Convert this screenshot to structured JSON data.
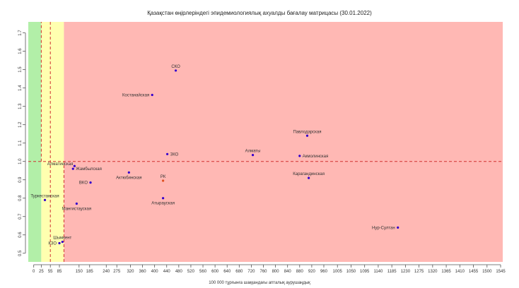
{
  "chart_data": {
    "type": "scatter",
    "title": "Қазақстан өңірлеріндегі эпидемиологиялық ахуалды бағалау матрицасы  (30.01.2022)",
    "xlabel": "100 000 тұрғынға шаққандағы апталық аурушаңдық",
    "ylabel": "",
    "xlim": [
      -18,
      1552
    ],
    "ylim": [
      0.453,
      1.76
    ],
    "x_ticks": [
      0,
      25,
      55,
      85,
      150,
      185,
      240,
      275,
      320,
      360,
      400,
      440,
      480,
      520,
      560,
      600,
      640,
      680,
      720,
      760,
      800,
      840,
      880,
      920,
      960,
      1005,
      1050,
      1095,
      1140,
      1185,
      1230,
      1275,
      1320,
      1365,
      1410,
      1455,
      1500,
      1545
    ],
    "y_ticks": [
      0.5,
      0.6,
      0.7,
      0.8,
      0.9,
      1.0,
      1.1,
      1.2,
      1.3,
      1.4,
      1.5,
      1.6,
      1.7
    ],
    "zones": [
      {
        "from": -18,
        "to": 25,
        "color": "#b2efa8"
      },
      {
        "from": 25,
        "to": 100,
        "color": "#ffffb0"
      },
      {
        "from": 100,
        "to": 1552,
        "color": "#ffb8b4"
      }
    ],
    "threshold_lines": {
      "y": 1.0,
      "vertical_segments": [
        {
          "x": 25,
          "y_from": 1.0,
          "y_to": 1.76
        },
        {
          "x": 55,
          "y_from": 0.453,
          "y_to": 1.76
        },
        {
          "x": 100,
          "y_from": 0.453,
          "y_to": 1.0
        }
      ],
      "color": "#d03030"
    },
    "points": [
      {
        "label": "СКО",
        "x": 470,
        "y": 1.495,
        "label_pos": "above",
        "color": "#3300cc",
        "label_color": "#333333"
      },
      {
        "label": "Костанайская",
        "x": 392,
        "y": 1.362,
        "label_pos": "left",
        "color": "#3300cc",
        "label_color": "#333333"
      },
      {
        "label": "Павлодарская",
        "x": 905,
        "y": 1.14,
        "label_pos": "above",
        "color": "#3300cc",
        "label_color": "#333333"
      },
      {
        "label": "Алматы",
        "x": 725,
        "y": 1.035,
        "label_pos": "above",
        "color": "#3300cc",
        "label_color": "#333333"
      },
      {
        "label": "Акмолинская",
        "x": 880,
        "y": 1.03,
        "label_pos": "right",
        "color": "#3300cc",
        "label_color": "#333333"
      },
      {
        "label": "ЗКО",
        "x": 442,
        "y": 1.04,
        "label_pos": "right",
        "color": "#3300cc",
        "label_color": "#333333"
      },
      {
        "label": "Алматинская",
        "x": 135,
        "y": 0.975,
        "label_pos": "above-left",
        "color": "#3300cc",
        "label_color": "#333333"
      },
      {
        "label": "Жамбылская",
        "x": 130,
        "y": 0.96,
        "label_pos": "right",
        "color": "#3300cc",
        "label_color": "#333333"
      },
      {
        "label": "Актюбинская",
        "x": 315,
        "y": 0.94,
        "label_pos": "below",
        "color": "#3300cc",
        "label_color": "#333333"
      },
      {
        "label": "РК",
        "x": 428,
        "y": 0.895,
        "label_pos": "above",
        "color": "#e05020",
        "label_color": "#e05020"
      },
      {
        "label": "Карагандинская",
        "x": 910,
        "y": 0.91,
        "label_pos": "above",
        "color": "#3300cc",
        "label_color": "#333333"
      },
      {
        "label": "ВКО",
        "x": 188,
        "y": 0.885,
        "label_pos": "left",
        "color": "#3300cc",
        "label_color": "#333333"
      },
      {
        "label": "Туркестанская",
        "x": 37,
        "y": 0.79,
        "label_pos": "above",
        "color": "#3300cc",
        "label_color": "#333333"
      },
      {
        "label": "Атырауская",
        "x": 428,
        "y": 0.8,
        "label_pos": "below",
        "color": "#3300cc",
        "label_color": "#333333"
      },
      {
        "label": "Мангистауская",
        "x": 142,
        "y": 0.77,
        "label_pos": "below",
        "color": "#3300cc",
        "label_color": "#333333"
      },
      {
        "label": "Нур-Султан",
        "x": 1205,
        "y": 0.64,
        "label_pos": "left",
        "color": "#3300cc",
        "label_color": "#333333"
      },
      {
        "label": "Шымкент",
        "x": 95,
        "y": 0.562,
        "label_pos": "above",
        "color": "#3300cc",
        "label_color": "#333333"
      },
      {
        "label": "КЗО",
        "x": 85,
        "y": 0.555,
        "label_pos": "left",
        "color": "#3300cc",
        "label_color": "#333333"
      }
    ],
    "grid": false,
    "legend": "none"
  }
}
